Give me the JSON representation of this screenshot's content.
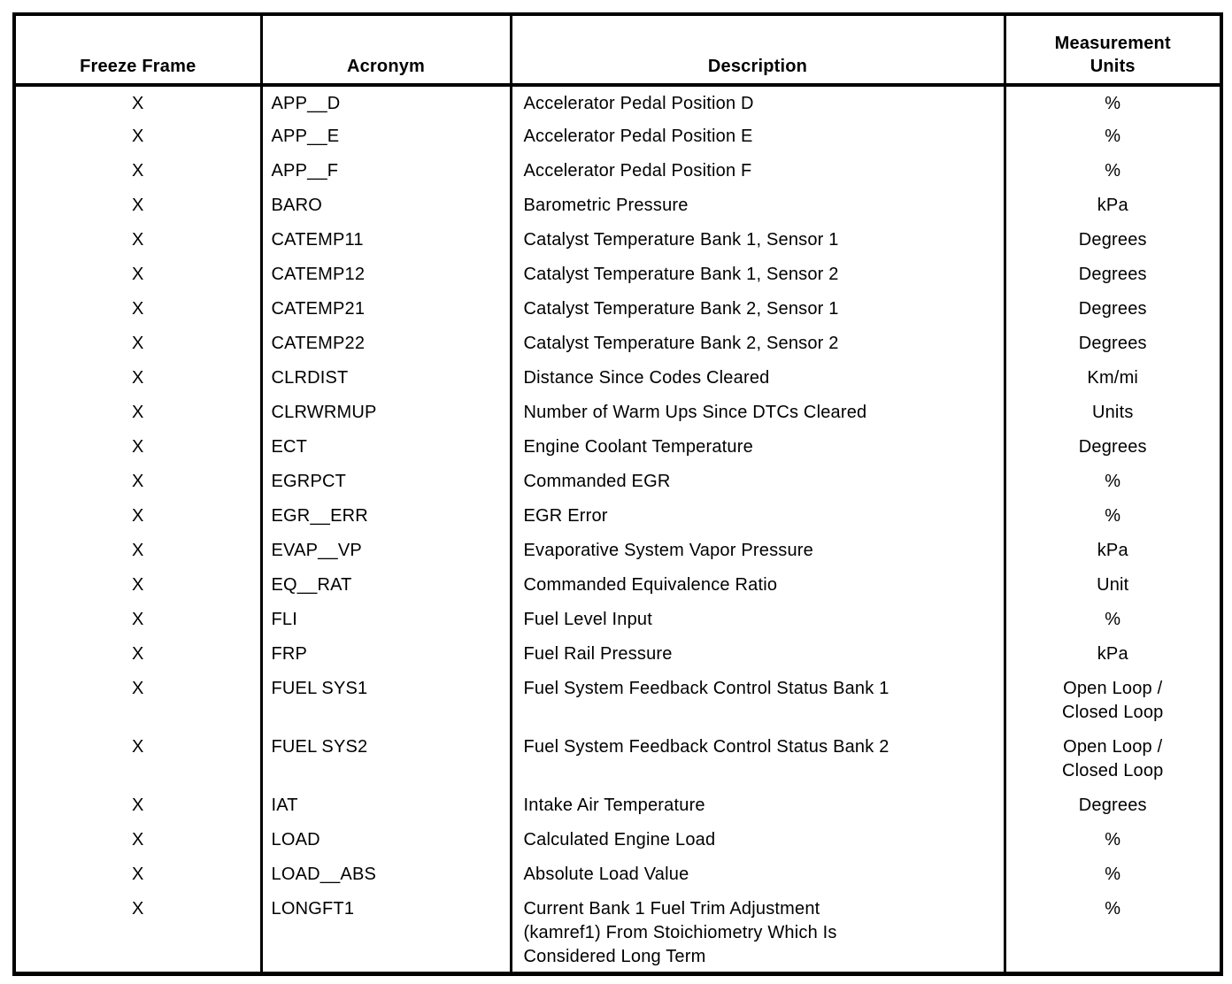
{
  "table": {
    "headers": {
      "freeze": "Freeze Frame",
      "acronym": "Acronym",
      "description": "Description",
      "units": "Measurement\nUnits"
    },
    "rows": [
      {
        "freeze": "X",
        "acronym": "APP__D",
        "description": "Accelerator Pedal Position D",
        "units": "%"
      },
      {
        "freeze": "X",
        "acronym": "APP__E",
        "description": "Accelerator Pedal Position E",
        "units": "%"
      },
      {
        "freeze": "X",
        "acronym": "APP__F",
        "description": "Accelerator Pedal Position F",
        "units": "%"
      },
      {
        "freeze": "X",
        "acronym": "BARO",
        "description": "Barometric Pressure",
        "units": "kPa"
      },
      {
        "freeze": "X",
        "acronym": "CATEMP11",
        "description": "Catalyst Temperature Bank 1, Sensor 1",
        "units": "Degrees"
      },
      {
        "freeze": "X",
        "acronym": "CATEMP12",
        "description": "Catalyst Temperature Bank 1, Sensor 2",
        "units": "Degrees"
      },
      {
        "freeze": "X",
        "acronym": "CATEMP21",
        "description": "Catalyst Temperature Bank 2, Sensor 1",
        "units": "Degrees"
      },
      {
        "freeze": "X",
        "acronym": "CATEMP22",
        "description": "Catalyst Temperature Bank 2, Sensor 2",
        "units": "Degrees"
      },
      {
        "freeze": "X",
        "acronym": "CLRDIST",
        "description": "Distance Since Codes Cleared",
        "units": "Km/mi"
      },
      {
        "freeze": "X",
        "acronym": "CLRWRMUP",
        "description": "Number of Warm Ups Since DTCs Cleared",
        "units": "Units"
      },
      {
        "freeze": "X",
        "acronym": "ECT",
        "description": "Engine Coolant Temperature",
        "units": "Degrees"
      },
      {
        "freeze": "X",
        "acronym": "EGRPCT",
        "description": "Commanded EGR",
        "units": "%"
      },
      {
        "freeze": "X",
        "acronym": "EGR__ERR",
        "description": "EGR Error",
        "units": "%"
      },
      {
        "freeze": "X",
        "acronym": "EVAP__VP",
        "description": "Evaporative System Vapor Pressure",
        "units": "kPa"
      },
      {
        "freeze": "X",
        "acronym": "EQ__RAT",
        "description": "Commanded Equivalence Ratio",
        "units": "Unit"
      },
      {
        "freeze": "X",
        "acronym": "FLI",
        "description": "Fuel Level Input",
        "units": "%"
      },
      {
        "freeze": "X",
        "acronym": "FRP",
        "description": "Fuel Rail Pressure",
        "units": "kPa"
      },
      {
        "freeze": "X",
        "acronym": "FUEL SYS1",
        "description": "Fuel System Feedback Control Status Bank 1",
        "units": "Open Loop /\nClosed Loop"
      },
      {
        "freeze": "X",
        "acronym": "FUEL SYS2",
        "description": "Fuel System Feedback Control Status Bank 2",
        "units": "Open Loop /\nClosed Loop"
      },
      {
        "freeze": "X",
        "acronym": "IAT",
        "description": "Intake Air Temperature",
        "units": "Degrees"
      },
      {
        "freeze": "X",
        "acronym": "LOAD",
        "description": "Calculated Engine Load",
        "units": "%"
      },
      {
        "freeze": "X",
        "acronym": "LOAD__ABS",
        "description": "Absolute Load Value",
        "units": "%"
      },
      {
        "freeze": "X",
        "acronym": "LONGFT1",
        "description": "Current Bank 1 Fuel Trim Adjustment\n(kamref1) From Stoichiometry Which Is\nConsidered Long Term",
        "units": "%"
      }
    ]
  }
}
